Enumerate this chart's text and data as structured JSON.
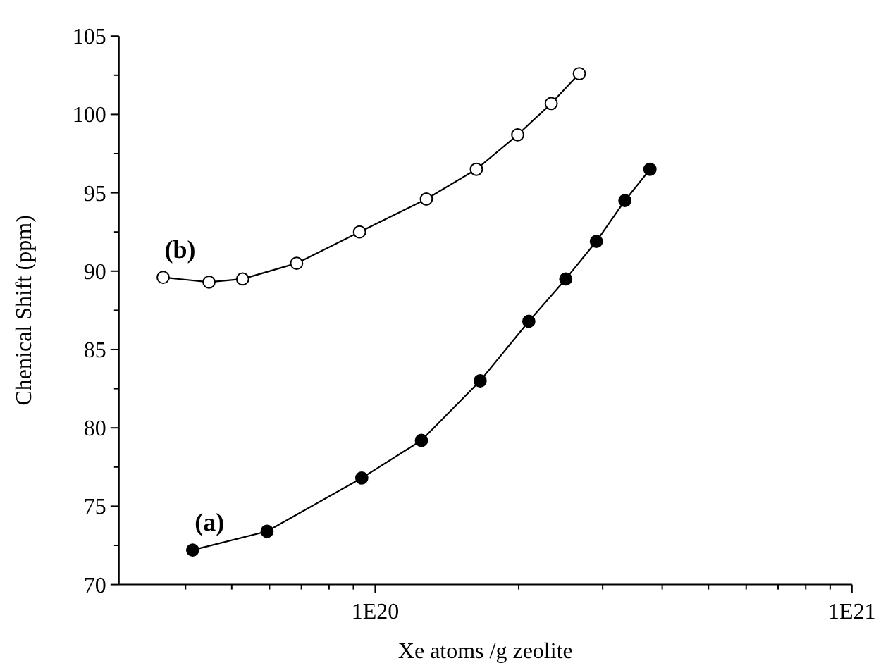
{
  "chart_data": {
    "type": "line",
    "xlabel": "Xe atoms /g zeolite",
    "ylabel": "Chenical Shift (ppm)",
    "log": "x",
    "marker": "circle",
    "line_style": "solid",
    "grid": false,
    "xlim": [
      2.9e+19,
      1e+21
    ],
    "xticks": [
      {
        "value": 4e+19,
        "label": null
      },
      {
        "value": 5e+19,
        "label": null
      },
      {
        "value": 6e+19,
        "label": null
      },
      {
        "value": 7e+19,
        "label": null
      },
      {
        "value": 8e+19,
        "label": null
      },
      {
        "value": 9e+19,
        "label": null
      },
      {
        "value": 1e+20,
        "label": "1E20"
      },
      {
        "value": 2e+20,
        "label": null
      },
      {
        "value": 3e+20,
        "label": null
      },
      {
        "value": 4e+20,
        "label": null
      },
      {
        "value": 5e+20,
        "label": null
      },
      {
        "value": 6e+20,
        "label": null
      },
      {
        "value": 7e+20,
        "label": null
      },
      {
        "value": 8e+20,
        "label": null
      },
      {
        "value": 9e+20,
        "label": null
      },
      {
        "value": 1e+21,
        "label": "1E21"
      }
    ],
    "ylim": [
      70,
      105
    ],
    "yticks": [
      70,
      {
        "value": 72.5,
        "label": null
      },
      75,
      {
        "value": 77.5,
        "label": null
      },
      80,
      {
        "value": 82.5,
        "label": null
      },
      85,
      {
        "value": 87.5,
        "label": null
      },
      90,
      {
        "value": 92.5,
        "label": null
      },
      95,
      {
        "value": 97.5,
        "label": null
      },
      100,
      {
        "value": 102.5,
        "label": null
      },
      105
    ],
    "series": [
      {
        "color": "#000000",
        "x": [
          4.14e+19,
          5.93e+19,
          9.37e+19,
          1.25e+20,
          1.66e+20,
          2.1e+20,
          2.51e+20,
          2.91e+20,
          3.34e+20,
          3.77e+20
        ],
        "values": [
          72.2,
          73.4,
          76.8,
          79.2,
          83.0,
          86.8,
          89.5,
          91.9,
          94.5,
          96.5
        ]
      },
      {
        "color": "#000000",
        "colors": [
          "#ffffff",
          "#ffffff",
          "#ffffff",
          "#ffffff",
          "#ffffff",
          "#ffffff",
          "#ffffff",
          "#ffffff",
          "#ffffff",
          "#ffffff"
        ],
        "x": [
          3.59e+19,
          4.48e+19,
          5.27e+19,
          6.84e+19,
          9.27e+19,
          1.28e+20,
          1.63e+20,
          1.99e+20,
          2.34e+20,
          2.68e+20
        ],
        "values": [
          89.6,
          89.3,
          89.5,
          90.5,
          92.5,
          94.6,
          96.5,
          98.7,
          100.7,
          102.6
        ]
      }
    ],
    "annotations": [
      "(a)",
      "(b)"
    ]
  }
}
